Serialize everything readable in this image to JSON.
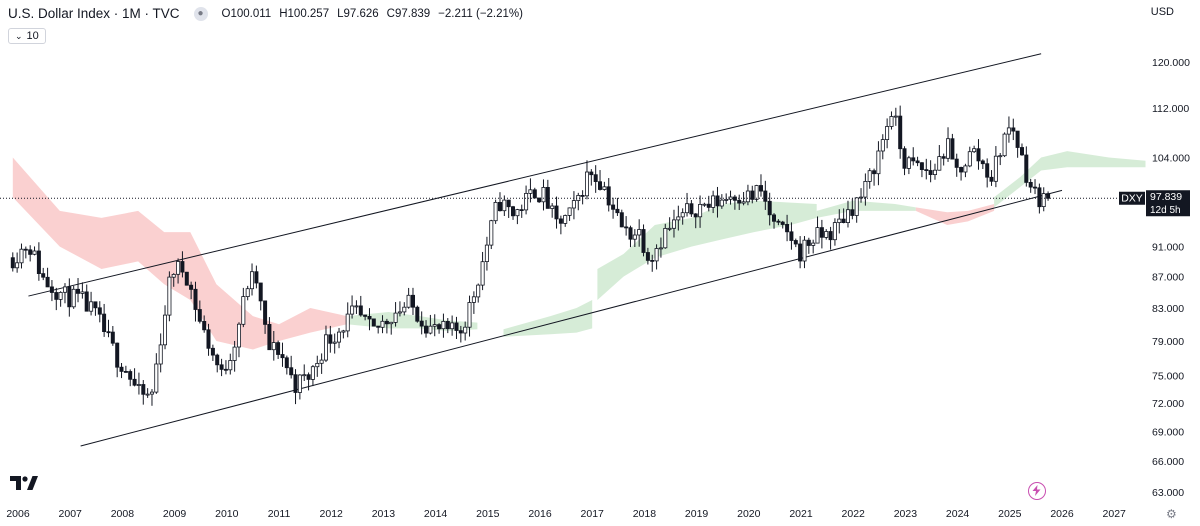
{
  "header": {
    "title": "U.S. Dollar Index · 1M · TVC",
    "open": "O100.011",
    "high": "H100.257",
    "low": "L97.626",
    "close": "C97.839",
    "change": "−2.211 (−2.21%)"
  },
  "indicator_toggle": {
    "label": "10"
  },
  "currency": "USD",
  "price_label": {
    "symbol": "DXY",
    "value": "97.839",
    "countdown": "12d 5h"
  },
  "colors": {
    "candle_up": "#ffffff",
    "candle_down": "#131722",
    "cloud_bull": "#c8e6c9",
    "cloud_bear": "#f8c0c0",
    "channel": "#131722",
    "price_tag": "#131722"
  },
  "icons": [
    "eye-icon",
    "chevron-down-icon",
    "tradingview-logo",
    "flash-icon",
    "gear-icon"
  ],
  "chart_data": {
    "type": "candlestick",
    "symbol": "DXY",
    "interval": "1M",
    "ylim": [
      63,
      125
    ],
    "y_scale": "log",
    "y_ticks": [
      "120.000",
      "112.000",
      "104.000",
      "98.000",
      "91.000",
      "87.000",
      "83.000",
      "79.000",
      "75.000",
      "72.000",
      "69.000",
      "66.000",
      "63.000"
    ],
    "x_ticks": [
      "2006",
      "2007",
      "2008",
      "2009",
      "2010",
      "2011",
      "2012",
      "2013",
      "2014",
      "2015",
      "2016",
      "2017",
      "2018",
      "2019",
      "2020",
      "2021",
      "2022",
      "2023",
      "2024",
      "2025",
      "2026",
      "2027"
    ],
    "last_price": 97.839,
    "price_path": [
      [
        2005.9,
        89.5
      ],
      [
        2006.2,
        91.5
      ],
      [
        2006.5,
        86.5
      ],
      [
        2006.9,
        84.5
      ],
      [
        2007.2,
        84
      ],
      [
        2007.5,
        82
      ],
      [
        2007.9,
        77
      ],
      [
        2008.1,
        75.5
      ],
      [
        2008.3,
        73
      ],
      [
        2008.55,
        72.5
      ],
      [
        2008.8,
        82
      ],
      [
        2008.95,
        88
      ],
      [
        2009.2,
        88
      ],
      [
        2009.5,
        81
      ],
      [
        2009.9,
        75
      ],
      [
        2010.15,
        79
      ],
      [
        2010.4,
        86
      ],
      [
        2010.55,
        87
      ],
      [
        2010.8,
        78
      ],
      [
        2011.0,
        78
      ],
      [
        2011.3,
        74
      ],
      [
        2011.6,
        75
      ],
      [
        2011.9,
        79
      ],
      [
        2012.1,
        80
      ],
      [
        2012.45,
        82.5
      ],
      [
        2012.8,
        80
      ],
      [
        2013.2,
        82.5
      ],
      [
        2013.5,
        83.5
      ],
      [
        2013.9,
        80.5
      ],
      [
        2014.3,
        80
      ],
      [
        2014.5,
        80.5
      ],
      [
        2014.7,
        84
      ],
      [
        2014.9,
        89
      ],
      [
        2015.2,
        97.5
      ],
      [
        2015.5,
        95.5
      ],
      [
        2015.9,
        99
      ],
      [
        2016.1,
        98
      ],
      [
        2016.3,
        94
      ],
      [
        2016.6,
        95.5
      ],
      [
        2016.95,
        102
      ],
      [
        2017.2,
        100
      ],
      [
        2017.6,
        93
      ],
      [
        2017.9,
        93
      ],
      [
        2018.1,
        89.5
      ],
      [
        2018.4,
        93
      ],
      [
        2018.7,
        95
      ],
      [
        2018.95,
        96.5
      ],
      [
        2019.3,
        97
      ],
      [
        2019.7,
        98.5
      ],
      [
        2020.1,
        98
      ],
      [
        2020.2,
        99.5
      ],
      [
        2020.5,
        93.5
      ],
      [
        2020.8,
        92.5
      ],
      [
        2020.95,
        90
      ],
      [
        2021.2,
        92
      ],
      [
        2021.6,
        93
      ],
      [
        2021.9,
        96
      ],
      [
        2022.2,
        98.5
      ],
      [
        2022.5,
        105
      ],
      [
        2022.75,
        112
      ],
      [
        2022.95,
        103.5
      ],
      [
        2023.2,
        102.5
      ],
      [
        2023.5,
        101.5
      ],
      [
        2023.8,
        106
      ],
      [
        2023.95,
        101.5
      ],
      [
        2024.3,
        105
      ],
      [
        2024.65,
        101
      ],
      [
        2024.9,
        107.5
      ],
      [
        2025.05,
        109
      ],
      [
        2025.3,
        102
      ],
      [
        2025.45,
        98.5
      ],
      [
        2025.6,
        97.8
      ],
      [
        2025.75,
        97.84
      ]
    ],
    "upper_channel": [
      [
        2006.2,
        84.5
      ],
      [
        2025.6,
        121.5
      ]
    ],
    "lower_channel": [
      [
        2007.2,
        67.5
      ],
      [
        2026.0,
        99
      ]
    ],
    "cloud": [
      {
        "sentiment": "bear",
        "points": [
          [
            2005.9,
            104,
            98
          ],
          [
            2006.8,
            96,
            91
          ],
          [
            2007.6,
            95,
            88
          ],
          [
            2008.3,
            96,
            89
          ],
          [
            2008.8,
            93,
            86
          ],
          [
            2009.3,
            93,
            84
          ],
          [
            2009.8,
            86,
            79
          ],
          [
            2010.5,
            82,
            78
          ],
          [
            2011.0,
            81,
            79
          ],
          [
            2011.6,
            83,
            80
          ],
          [
            2012.3,
            82,
            81
          ]
        ]
      },
      {
        "sentiment": "bull",
        "points": [
          [
            2012.3,
            82,
            81
          ],
          [
            2013.1,
            82.5,
            80.5
          ],
          [
            2013.7,
            82,
            80.5
          ],
          [
            2014.2,
            81.5,
            80.2
          ],
          [
            2014.8,
            81.2,
            80.4
          ]
        ]
      },
      {
        "sentiment": "bull",
        "points": [
          [
            2015.3,
            80.4,
            79.5
          ],
          [
            2016.2,
            82,
            79.8
          ],
          [
            2016.7,
            83,
            80
          ],
          [
            2017.0,
            84,
            80.5
          ]
        ]
      },
      {
        "sentiment": "bull",
        "points": [
          [
            2017.1,
            88,
            84
          ],
          [
            2017.6,
            90,
            87
          ],
          [
            2018.2,
            94,
            89.5
          ],
          [
            2018.9,
            95,
            91
          ],
          [
            2019.5,
            97,
            92
          ],
          [
            2020.1,
            97.5,
            93
          ],
          [
            2020.8,
            97.2,
            94
          ],
          [
            2021.3,
            97,
            95
          ]
        ]
      },
      {
        "sentiment": "bull",
        "points": [
          [
            2021.3,
            96,
            95
          ],
          [
            2022.0,
            97.5,
            96
          ],
          [
            2022.8,
            97,
            96
          ],
          [
            2023.2,
            96.5,
            96
          ]
        ]
      },
      {
        "sentiment": "bear",
        "points": [
          [
            2023.2,
            96.5,
            96
          ],
          [
            2023.8,
            95.8,
            94
          ],
          [
            2024.2,
            96,
            94.5
          ],
          [
            2024.7,
            97,
            96
          ]
        ]
      },
      {
        "sentiment": "bull",
        "points": [
          [
            2024.7,
            98,
            96.5
          ],
          [
            2025.2,
            101,
            99.5
          ],
          [
            2025.6,
            104,
            102
          ],
          [
            2026.1,
            105,
            102.5
          ],
          [
            2026.9,
            104,
            102.5
          ],
          [
            2027.6,
            103.5,
            102.5
          ]
        ]
      }
    ]
  }
}
